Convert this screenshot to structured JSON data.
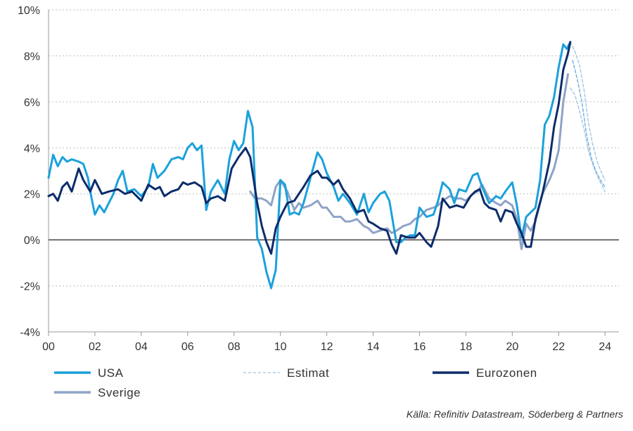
{
  "chart_data": {
    "type": "line",
    "ylim": [
      -4,
      10
    ],
    "xlim": [
      2000,
      2024.6
    ],
    "y_ticks": [
      -4,
      -2,
      0,
      2,
      4,
      6,
      8,
      10
    ],
    "y_tick_labels": [
      "-4%",
      "-2%",
      "0%",
      "2%",
      "4%",
      "6%",
      "8%",
      "10%"
    ],
    "x_ticks": [
      2000,
      2002,
      2004,
      2006,
      2008,
      2010,
      2012,
      2014,
      2016,
      2018,
      2020,
      2022,
      2024
    ],
    "x_tick_labels": [
      "00",
      "02",
      "04",
      "06",
      "08",
      "10",
      "12",
      "14",
      "16",
      "18",
      "20",
      "22",
      "24"
    ],
    "grid": "horizontal dotted",
    "legend_placement": "bottom",
    "series": [
      {
        "name": "USA",
        "color": "#1ba1dc",
        "style": "solid",
        "points": [
          [
            2000,
            2.7
          ],
          [
            2000.2,
            3.7
          ],
          [
            2000.4,
            3.2
          ],
          [
            2000.6,
            3.6
          ],
          [
            2000.8,
            3.4
          ],
          [
            2001,
            3.5
          ],
          [
            2001.3,
            3.4
          ],
          [
            2001.5,
            3.3
          ],
          [
            2001.7,
            2.7
          ],
          [
            2001.8,
            2.1
          ],
          [
            2002,
            1.1
          ],
          [
            2002.2,
            1.5
          ],
          [
            2002.4,
            1.2
          ],
          [
            2002.6,
            1.6
          ],
          [
            2002.8,
            2.0
          ],
          [
            2003,
            2.6
          ],
          [
            2003.2,
            3.0
          ],
          [
            2003.4,
            2.1
          ],
          [
            2003.7,
            2.2
          ],
          [
            2004,
            1.9
          ],
          [
            2004.3,
            2.3
          ],
          [
            2004.5,
            3.3
          ],
          [
            2004.7,
            2.7
          ],
          [
            2005,
            3.0
          ],
          [
            2005.3,
            3.5
          ],
          [
            2005.6,
            3.6
          ],
          [
            2005.8,
            3.5
          ],
          [
            2006,
            4.0
          ],
          [
            2006.2,
            4.2
          ],
          [
            2006.4,
            3.9
          ],
          [
            2006.6,
            4.1
          ],
          [
            2006.8,
            1.3
          ],
          [
            2007,
            2.1
          ],
          [
            2007.3,
            2.6
          ],
          [
            2007.6,
            2.0
          ],
          [
            2007.8,
            3.5
          ],
          [
            2008,
            4.3
          ],
          [
            2008.2,
            3.9
          ],
          [
            2008.4,
            4.2
          ],
          [
            2008.6,
            5.6
          ],
          [
            2008.8,
            4.9
          ],
          [
            2009,
            0.1
          ],
          [
            2009.2,
            -0.4
          ],
          [
            2009.4,
            -1.4
          ],
          [
            2009.6,
            -2.1
          ],
          [
            2009.8,
            -1.3
          ],
          [
            2010,
            2.6
          ],
          [
            2010.2,
            2.4
          ],
          [
            2010.4,
            1.1
          ],
          [
            2010.6,
            1.2
          ],
          [
            2010.8,
            1.1
          ],
          [
            2011,
            1.6
          ],
          [
            2011.3,
            2.7
          ],
          [
            2011.6,
            3.8
          ],
          [
            2011.8,
            3.5
          ],
          [
            2012,
            2.9
          ],
          [
            2012.3,
            2.3
          ],
          [
            2012.5,
            1.7
          ],
          [
            2012.7,
            2.0
          ],
          [
            2013,
            1.6
          ],
          [
            2013.3,
            1.1
          ],
          [
            2013.6,
            2.0
          ],
          [
            2013.8,
            1.2
          ],
          [
            2014,
            1.6
          ],
          [
            2014.3,
            2.0
          ],
          [
            2014.5,
            2.1
          ],
          [
            2014.7,
            1.7
          ],
          [
            2015,
            -0.1
          ],
          [
            2015.2,
            -0.1
          ],
          [
            2015.4,
            0.1
          ],
          [
            2015.6,
            0.2
          ],
          [
            2015.8,
            0.2
          ],
          [
            2016,
            1.4
          ],
          [
            2016.3,
            1.0
          ],
          [
            2016.6,
            1.1
          ],
          [
            2016.8,
            1.7
          ],
          [
            2017,
            2.5
          ],
          [
            2017.3,
            2.2
          ],
          [
            2017.5,
            1.6
          ],
          [
            2017.7,
            2.2
          ],
          [
            2018,
            2.1
          ],
          [
            2018.3,
            2.8
          ],
          [
            2018.5,
            2.9
          ],
          [
            2018.7,
            2.3
          ],
          [
            2019,
            1.6
          ],
          [
            2019.3,
            1.9
          ],
          [
            2019.5,
            1.8
          ],
          [
            2019.7,
            2.1
          ],
          [
            2020,
            2.5
          ],
          [
            2020.2,
            1.5
          ],
          [
            2020.4,
            0.1
          ],
          [
            2020.6,
            1.0
          ],
          [
            2020.8,
            1.2
          ],
          [
            2021,
            1.4
          ],
          [
            2021.2,
            2.6
          ],
          [
            2021.4,
            5.0
          ],
          [
            2021.6,
            5.4
          ],
          [
            2021.8,
            6.2
          ],
          [
            2022,
            7.5
          ],
          [
            2022.2,
            8.5
          ],
          [
            2022.35,
            8.3
          ],
          [
            2022.5,
            8.6
          ]
        ]
      },
      {
        "name": "Eurozonen",
        "color": "#0c2c6b",
        "style": "solid",
        "points": [
          [
            2000,
            1.9
          ],
          [
            2000.2,
            2.0
          ],
          [
            2000.4,
            1.7
          ],
          [
            2000.6,
            2.3
          ],
          [
            2000.8,
            2.5
          ],
          [
            2001,
            2.1
          ],
          [
            2001.3,
            3.1
          ],
          [
            2001.5,
            2.6
          ],
          [
            2001.8,
            2.1
          ],
          [
            2002,
            2.6
          ],
          [
            2002.3,
            2.0
          ],
          [
            2002.6,
            2.1
          ],
          [
            2003,
            2.2
          ],
          [
            2003.3,
            2.0
          ],
          [
            2003.6,
            2.1
          ],
          [
            2004,
            1.7
          ],
          [
            2004.3,
            2.4
          ],
          [
            2004.6,
            2.2
          ],
          [
            2004.8,
            2.3
          ],
          [
            2005,
            1.9
          ],
          [
            2005.3,
            2.1
          ],
          [
            2005.6,
            2.2
          ],
          [
            2005.8,
            2.5
          ],
          [
            2006,
            2.4
          ],
          [
            2006.3,
            2.5
          ],
          [
            2006.6,
            2.3
          ],
          [
            2006.8,
            1.6
          ],
          [
            2007,
            1.8
          ],
          [
            2007.3,
            1.9
          ],
          [
            2007.6,
            1.7
          ],
          [
            2007.9,
            3.1
          ],
          [
            2008.2,
            3.6
          ],
          [
            2008.5,
            4.0
          ],
          [
            2008.7,
            3.6
          ],
          [
            2009,
            1.6
          ],
          [
            2009.2,
            0.6
          ],
          [
            2009.4,
            -0.1
          ],
          [
            2009.6,
            -0.6
          ],
          [
            2009.8,
            0.5
          ],
          [
            2010,
            1.0
          ],
          [
            2010.3,
            1.6
          ],
          [
            2010.6,
            1.7
          ],
          [
            2010.8,
            2.0
          ],
          [
            2011,
            2.3
          ],
          [
            2011.3,
            2.8
          ],
          [
            2011.6,
            3.0
          ],
          [
            2011.8,
            2.7
          ],
          [
            2012,
            2.7
          ],
          [
            2012.3,
            2.4
          ],
          [
            2012.5,
            2.6
          ],
          [
            2012.7,
            2.2
          ],
          [
            2013,
            1.8
          ],
          [
            2013.3,
            1.2
          ],
          [
            2013.6,
            1.3
          ],
          [
            2013.8,
            0.8
          ],
          [
            2014,
            0.7
          ],
          [
            2014.3,
            0.5
          ],
          [
            2014.6,
            0.4
          ],
          [
            2014.8,
            -0.2
          ],
          [
            2015,
            -0.6
          ],
          [
            2015.2,
            0.2
          ],
          [
            2015.5,
            0.1
          ],
          [
            2015.8,
            0.1
          ],
          [
            2016,
            0.3
          ],
          [
            2016.3,
            -0.1
          ],
          [
            2016.5,
            -0.3
          ],
          [
            2016.8,
            0.6
          ],
          [
            2017,
            1.8
          ],
          [
            2017.3,
            1.4
          ],
          [
            2017.6,
            1.5
          ],
          [
            2017.9,
            1.4
          ],
          [
            2018.2,
            1.9
          ],
          [
            2018.4,
            2.1
          ],
          [
            2018.6,
            2.2
          ],
          [
            2018.8,
            1.6
          ],
          [
            2019,
            1.4
          ],
          [
            2019.3,
            1.3
          ],
          [
            2019.5,
            0.8
          ],
          [
            2019.7,
            1.3
          ],
          [
            2020,
            1.2
          ],
          [
            2020.2,
            0.7
          ],
          [
            2020.4,
            0.3
          ],
          [
            2020.6,
            -0.3
          ],
          [
            2020.8,
            -0.3
          ],
          [
            2021,
            0.9
          ],
          [
            2021.3,
            2.0
          ],
          [
            2021.6,
            3.4
          ],
          [
            2021.8,
            4.9
          ],
          [
            2022,
            5.9
          ],
          [
            2022.2,
            7.4
          ],
          [
            2022.4,
            8.1
          ],
          [
            2022.5,
            8.6
          ]
        ]
      },
      {
        "name": "Sverige",
        "color": "#8fa3c6",
        "style": "solid",
        "points": [
          [
            2008.7,
            2.1
          ],
          [
            2008.9,
            1.8
          ],
          [
            2009.2,
            1.8
          ],
          [
            2009.4,
            1.7
          ],
          [
            2009.6,
            1.5
          ],
          [
            2009.8,
            2.3
          ],
          [
            2010,
            2.6
          ],
          [
            2010.3,
            2.1
          ],
          [
            2010.6,
            1.3
          ],
          [
            2010.8,
            1.6
          ],
          [
            2011,
            1.4
          ],
          [
            2011.3,
            1.5
          ],
          [
            2011.6,
            1.7
          ],
          [
            2011.8,
            1.4
          ],
          [
            2012,
            1.4
          ],
          [
            2012.3,
            1.0
          ],
          [
            2012.6,
            1.0
          ],
          [
            2012.8,
            0.8
          ],
          [
            2013,
            0.8
          ],
          [
            2013.3,
            0.9
          ],
          [
            2013.6,
            0.6
          ],
          [
            2013.8,
            0.5
          ],
          [
            2014,
            0.3
          ],
          [
            2014.3,
            0.4
          ],
          [
            2014.6,
            0.5
          ],
          [
            2014.8,
            0.3
          ],
          [
            2015,
            0.4
          ],
          [
            2015.3,
            0.6
          ],
          [
            2015.6,
            0.7
          ],
          [
            2015.8,
            0.9
          ],
          [
            2016,
            1.0
          ],
          [
            2016.3,
            1.3
          ],
          [
            2016.6,
            1.4
          ],
          [
            2016.8,
            1.5
          ],
          [
            2017,
            1.7
          ],
          [
            2017.3,
            1.9
          ],
          [
            2017.6,
            1.8
          ],
          [
            2017.8,
            1.8
          ],
          [
            2018,
            1.7
          ],
          [
            2018.3,
            2.0
          ],
          [
            2018.5,
            2.1
          ],
          [
            2018.7,
            2.4
          ],
          [
            2019,
            1.8
          ],
          [
            2019.3,
            1.6
          ],
          [
            2019.5,
            1.5
          ],
          [
            2019.7,
            1.7
          ],
          [
            2020,
            1.5
          ],
          [
            2020.2,
            0.9
          ],
          [
            2020.4,
            -0.4
          ],
          [
            2020.6,
            0.7
          ],
          [
            2020.8,
            0.4
          ],
          [
            2021,
            0.8
          ],
          [
            2021.3,
            2.0
          ],
          [
            2021.6,
            2.6
          ],
          [
            2021.8,
            3.1
          ],
          [
            2022,
            3.9
          ],
          [
            2022.2,
            6.0
          ],
          [
            2022.4,
            7.2
          ]
        ]
      },
      {
        "name": "Estimat",
        "color": "#a9cde9",
        "style": "dashed",
        "points": [
          [
            2022.5,
            8.6
          ],
          [
            2022.7,
            8.2
          ],
          [
            2022.9,
            7.6
          ],
          [
            2023.1,
            6.5
          ],
          [
            2023.3,
            5.0
          ],
          [
            2023.5,
            4.0
          ],
          [
            2023.7,
            3.3
          ],
          [
            2023.9,
            2.8
          ],
          [
            2024,
            2.6
          ]
        ]
      },
      {
        "name": "Estimat",
        "color": "#a9cde9",
        "style": "dashed",
        "points": [
          [
            2022.5,
            6.6
          ],
          [
            2022.7,
            6.3
          ],
          [
            2022.9,
            5.6
          ],
          [
            2023.1,
            4.8
          ],
          [
            2023.3,
            3.8
          ],
          [
            2023.5,
            3.2
          ],
          [
            2023.7,
            2.7
          ],
          [
            2023.9,
            2.3
          ],
          [
            2024,
            2.1
          ]
        ]
      },
      {
        "name": "Estimat",
        "color": "#7fb5de",
        "style": "dashed",
        "points": [
          [
            2022.6,
            7.8
          ],
          [
            2022.8,
            7.0
          ],
          [
            2023,
            6.0
          ],
          [
            2023.2,
            4.6
          ],
          [
            2023.4,
            3.6
          ],
          [
            2023.6,
            3.0
          ],
          [
            2023.8,
            2.6
          ],
          [
            2024,
            2.3
          ]
        ]
      }
    ],
    "legend": [
      {
        "label": "USA",
        "color": "#1ba1dc",
        "style": "solid"
      },
      {
        "label": "Estimat",
        "color": "#a9cde9",
        "style": "dashed"
      },
      {
        "label": "Eurozonen",
        "color": "#0c2c6b",
        "style": "solid"
      },
      {
        "label": "Sverige",
        "color": "#8fa3c6",
        "style": "solid"
      }
    ]
  },
  "source": "Källa: Refinitiv Datastream, Söderberg & Partners"
}
